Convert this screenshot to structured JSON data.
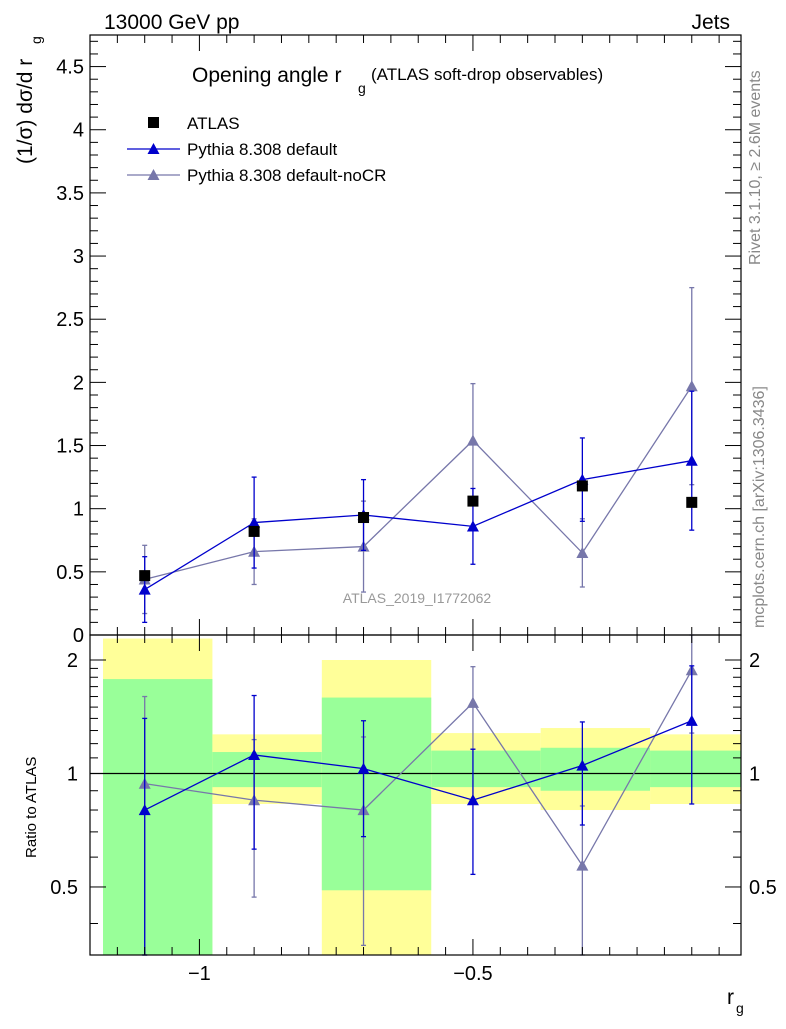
{
  "header": {
    "energy_label": "13000 GeV pp",
    "process_label": "Jets",
    "rivet_label": "Rivet 3.1.10, ≥ 2.6M events",
    "mcplots_label": "mcplots.cern.ch [arXiv:1306.3436]",
    "analysis_id": "ATLAS_2019_I1772062"
  },
  "colors": {
    "data": "#000000",
    "default": "#0000cc",
    "nocr": "#7777aa",
    "band_inner": "#99ff99",
    "band_outer": "#ffff99"
  },
  "chart_data": [
    {
      "panel": "main",
      "type": "scatter",
      "title": "Opening angle r",
      "title_subscript": "g",
      "title_suffix": "(ATLAS soft-drop observables)",
      "ylabel": "(1/σ) dσ/d r",
      "ylabel_subscript": "g",
      "xlim": [
        -1.2,
        -0.01
      ],
      "ylim": [
        0,
        4.75
      ],
      "yticks": [
        0,
        0.5,
        1,
        1.5,
        2,
        2.5,
        3,
        3.5,
        4,
        4.5
      ],
      "ytick_labels": [
        "0",
        "0.5",
        "1",
        "1.5",
        "2",
        "2.5",
        "3",
        "3.5",
        "4",
        "4.5"
      ],
      "legend": [
        "ATLAS",
        "Pythia 8.308 default",
        "Pythia 8.308 default-noCR"
      ],
      "x": [
        -1.1,
        -0.9,
        -0.7,
        -0.5,
        -0.3,
        -0.1
      ],
      "series": [
        {
          "name": "ATLAS",
          "style": "square",
          "values": [
            0.47,
            0.82,
            0.93,
            1.06,
            1.18,
            1.05
          ]
        },
        {
          "name": "Pythia 8.308 default",
          "style": "line-triangle",
          "values": [
            0.36,
            0.89,
            0.95,
            0.86,
            1.23,
            1.38
          ],
          "errors": [
            0.26,
            0.36,
            0.28,
            0.3,
            0.33,
            0.55
          ]
        },
        {
          "name": "Pythia 8.308 default-noCR",
          "style": "line-triangle",
          "values": [
            0.44,
            0.66,
            0.7,
            1.54,
            0.65,
            1.97
          ],
          "errors": [
            0.27,
            0.26,
            0.36,
            0.45,
            0.27,
            0.78
          ]
        }
      ]
    },
    {
      "panel": "ratio",
      "type": "line",
      "ylabel": "Ratio to ATLAS",
      "xlabel": "r",
      "xlabel_subscript": "g",
      "xlim": [
        -1.2,
        -0.01
      ],
      "ylim": [
        0.33,
        2.33
      ],
      "yticks": [
        0.5,
        1,
        2
      ],
      "ytick_labels": [
        "0.5",
        "1",
        "2"
      ],
      "xticks": [
        -1,
        -0.5
      ],
      "xtick_labels": [
        "−1",
        "−0.5"
      ],
      "reference_line": 1,
      "bins": [
        {
          "lo": -1.2,
          "hi": -1.0,
          "inner": [
            0.33,
            1.78
          ],
          "outer": [
            0.33,
            2.28
          ]
        },
        {
          "lo": -1.0,
          "hi": -0.8,
          "inner": [
            0.92,
            1.14
          ],
          "outer": [
            0.83,
            1.27
          ]
        },
        {
          "lo": -0.8,
          "hi": -0.6,
          "inner": [
            0.49,
            1.59
          ],
          "outer": [
            0.33,
            2.0
          ]
        },
        {
          "lo": -0.6,
          "hi": -0.4,
          "inner": [
            0.92,
            1.15
          ],
          "outer": [
            0.83,
            1.28
          ]
        },
        {
          "lo": -0.4,
          "hi": -0.2,
          "inner": [
            0.9,
            1.17
          ],
          "outer": [
            0.8,
            1.32
          ]
        },
        {
          "lo": -0.2,
          "hi": -0.01,
          "inner": [
            0.92,
            1.15
          ],
          "outer": [
            0.83,
            1.27
          ]
        }
      ],
      "x": [
        -1.1,
        -0.9,
        -0.7,
        -0.5,
        -0.3,
        -0.1
      ],
      "series": [
        {
          "name": "Pythia 8.308 default",
          "values": [
            0.8,
            1.12,
            1.03,
            0.85,
            1.05,
            1.38
          ],
          "errors": [
            0.6,
            0.49,
            0.35,
            0.31,
            0.32,
            0.55
          ]
        },
        {
          "name": "Pythia 8.308 default-noCR",
          "values": [
            0.94,
            0.85,
            0.8,
            1.54,
            0.57,
            1.88
          ],
          "errors": [
            0.66,
            0.38,
            0.45,
            0.38,
            0.25,
            0.6
          ]
        }
      ]
    }
  ]
}
